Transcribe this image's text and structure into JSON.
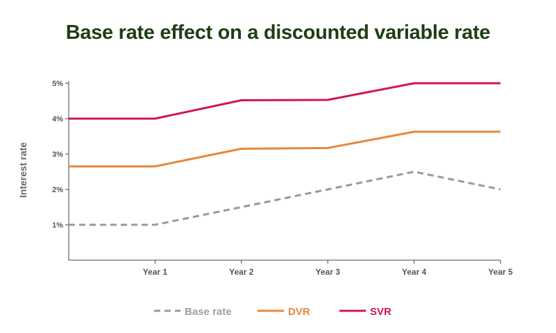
{
  "chart_data": {
    "type": "line",
    "title": "Base rate effect on a discounted variable rate",
    "ylabel": "Interest rate",
    "xlabel": "",
    "x": [
      0,
      1,
      2,
      3,
      4,
      5
    ],
    "x_tick_labels": [
      "Year 1",
      "Year 2",
      "Year 3",
      "Year 4",
      "Year 5"
    ],
    "y_tick_labels": [
      "1%",
      "2%",
      "3%",
      "4%",
      "5%"
    ],
    "ylim": [
      0,
      5
    ],
    "grid": false,
    "legend_position": "bottom",
    "series": [
      {
        "name": "Base rate",
        "values": [
          1.0,
          1.0,
          1.5,
          2.0,
          2.5,
          2.0
        ],
        "color": "#999999",
        "style": "dashed"
      },
      {
        "name": "DVR",
        "values": [
          2.65,
          2.65,
          3.15,
          3.17,
          3.63,
          3.63
        ],
        "color": "#e8873a",
        "style": "solid"
      },
      {
        "name": "SVR",
        "values": [
          4.0,
          4.0,
          4.52,
          4.53,
          5.0,
          5.0
        ],
        "color": "#d0145a",
        "style": "solid"
      }
    ]
  }
}
